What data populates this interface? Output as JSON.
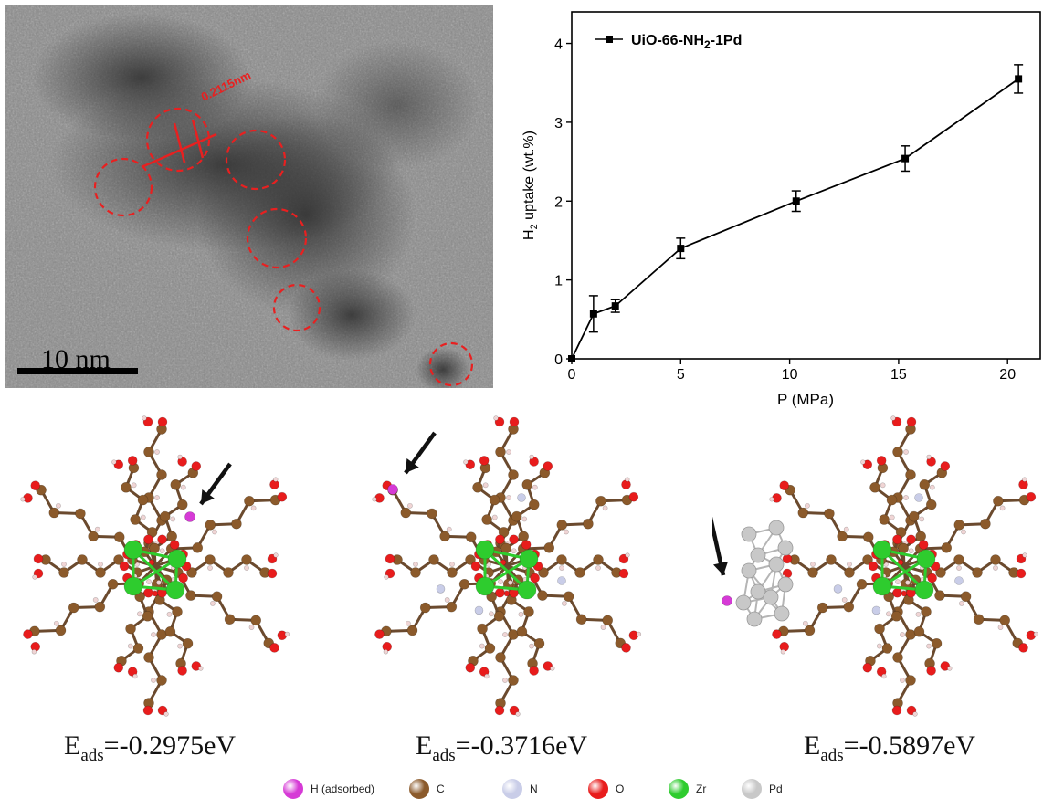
{
  "tem_panel": {
    "lattice_label": "0.2115nm",
    "scale_bar_label": "10 nm"
  },
  "chart_data": {
    "type": "line",
    "title": "",
    "xlabel": "P (MPa)",
    "ylabel_main": "H",
    "ylabel_sub": "2",
    "ylabel_rest": " uptake (wt.%)",
    "xlim": [
      0,
      21.5
    ],
    "ylim": [
      0,
      4.4
    ],
    "xticks": [
      0,
      5,
      10,
      15,
      20
    ],
    "yticks": [
      0,
      1,
      2,
      3,
      4
    ],
    "legend_position": "top-left",
    "series": [
      {
        "name": "UiO-66-NH2-1Pd",
        "legend_main": "UiO-66-NH",
        "legend_sub": "2",
        "legend_rest": "-1Pd",
        "x": [
          0,
          1,
          2,
          5,
          10.3,
          15.3,
          20.5
        ],
        "y": [
          0,
          0.57,
          0.67,
          1.4,
          2.0,
          2.54,
          3.55
        ],
        "err": [
          0,
          0.23,
          0.08,
          0.13,
          0.13,
          0.16,
          0.18
        ]
      }
    ]
  },
  "structures": [
    {
      "label_main": "E",
      "label_sub": "ads",
      "label_value": "=-0.2975eV"
    },
    {
      "label_main": "E",
      "label_sub": "ads",
      "label_value": "=-0.3716eV"
    },
    {
      "label_main": "E",
      "label_sub": "ads",
      "label_value": "=-0.5897eV"
    }
  ],
  "legend": [
    {
      "label": "H (adsorbed)",
      "color": "#d63ad6"
    },
    {
      "label": "C",
      "color": "#8b5a2b"
    },
    {
      "label": "N",
      "color": "#c9cde8"
    },
    {
      "label": "O",
      "color": "#e81c1c"
    },
    {
      "label": "Zr",
      "color": "#2ecc2e"
    },
    {
      "label": "Pd",
      "color": "#c8c8c8"
    }
  ]
}
